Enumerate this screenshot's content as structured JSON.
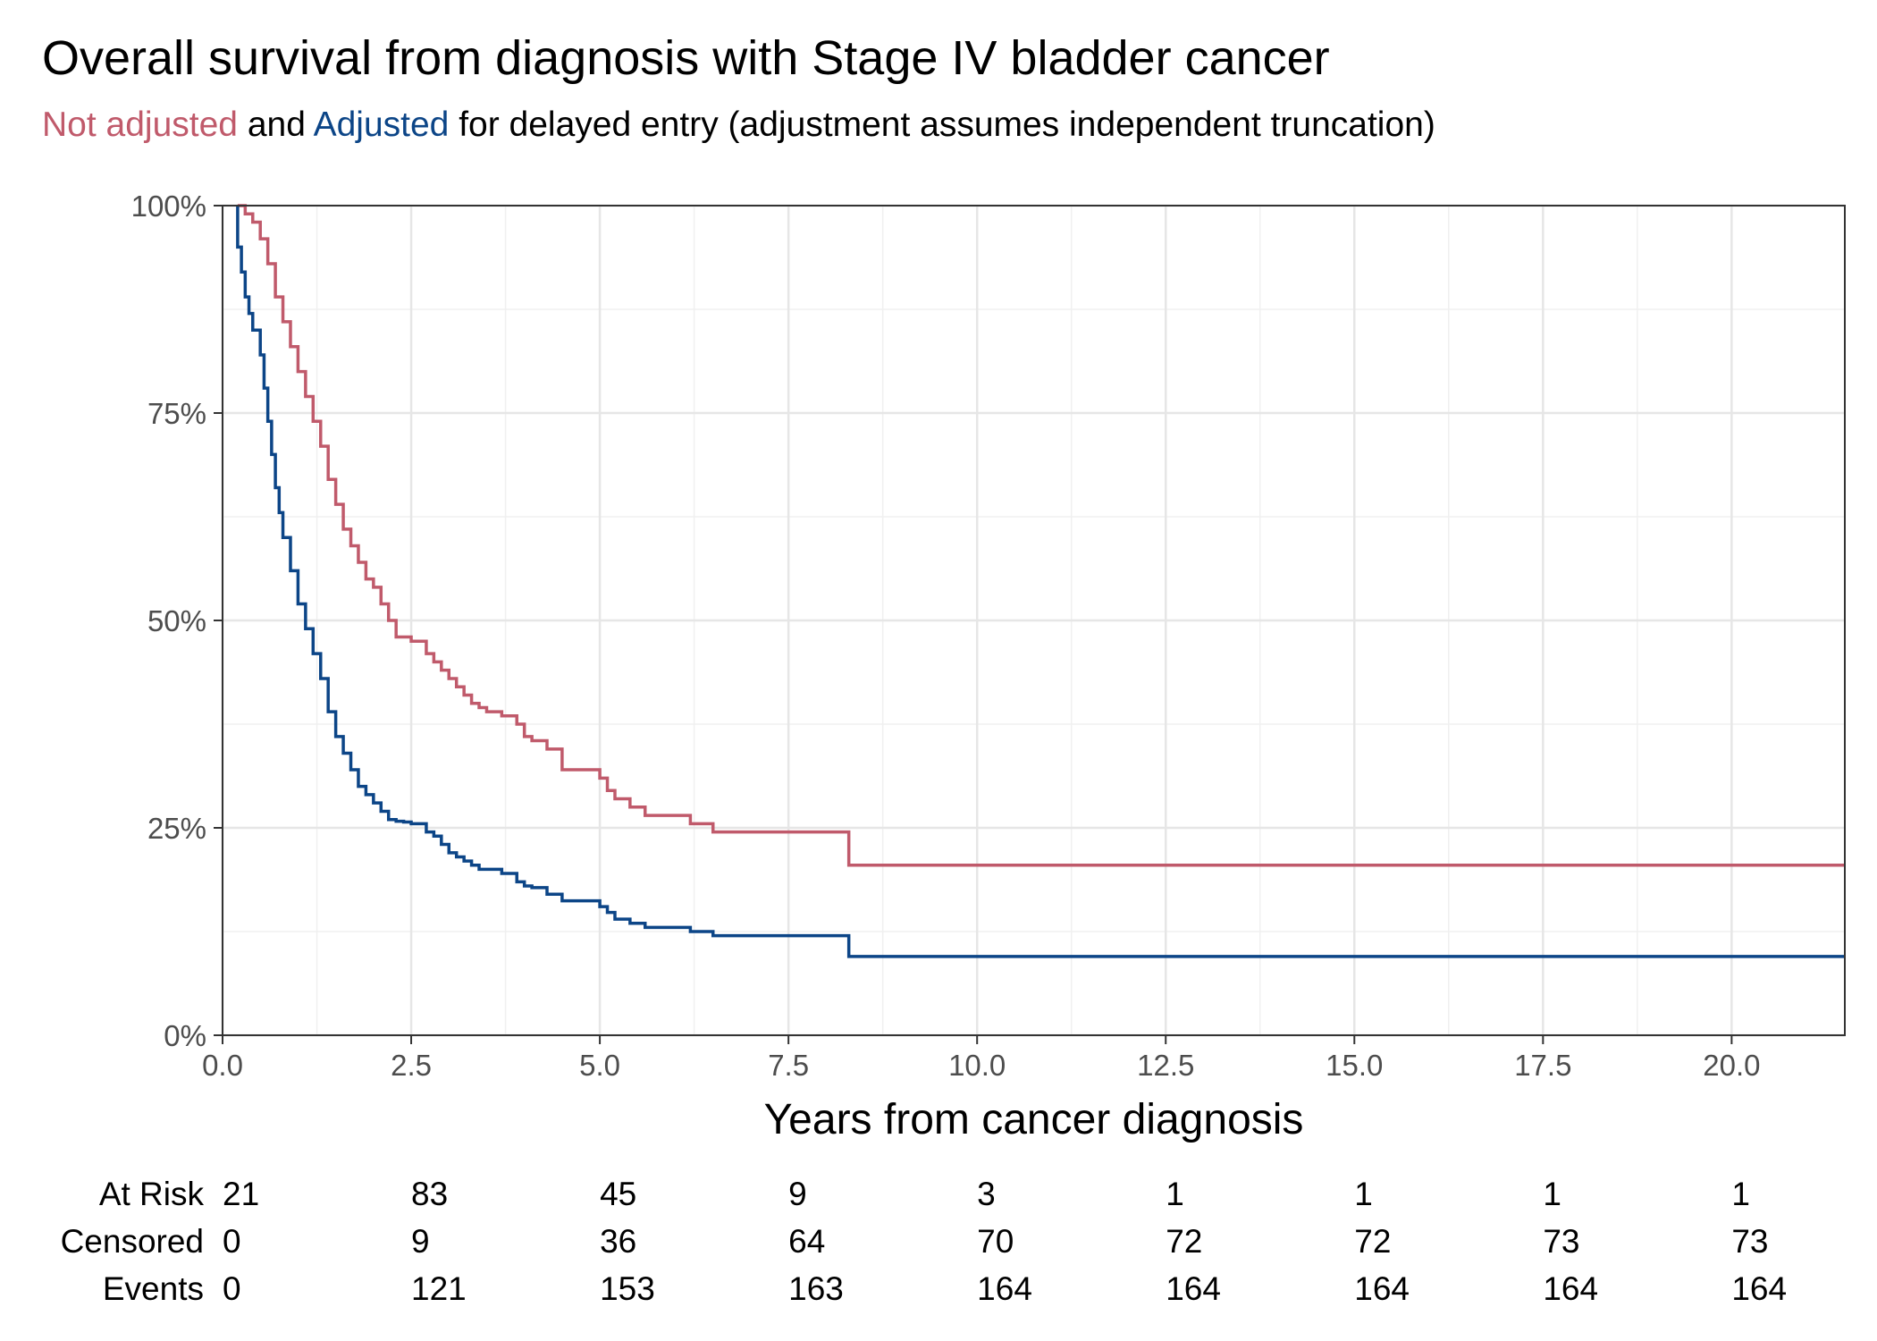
{
  "chart_data": {
    "type": "line",
    "title": "Overall survival from diagnosis with Stage IV bladder cancer",
    "subtitle": {
      "part1": "Not adjusted",
      "part2": " and ",
      "part3": "Adjusted",
      "part4": " for delayed entry (adjustment assumes independent truncation)"
    },
    "xlabel": "Years from cancer diagnosis",
    "ylabel": "",
    "xlim": [
      0,
      21.5
    ],
    "ylim": [
      0,
      1
    ],
    "x_ticks": [
      0,
      2.5,
      5,
      7.5,
      10,
      12.5,
      15,
      17.5,
      20
    ],
    "x_tick_labels": [
      "0.0",
      "2.5",
      "5.0",
      "7.5",
      "10.0",
      "12.5",
      "15.0",
      "17.5",
      "20.0"
    ],
    "y_ticks": [
      0,
      0.25,
      0.5,
      0.75,
      1
    ],
    "y_tick_labels": [
      "0%",
      "25%",
      "50%",
      "75%",
      "100%"
    ],
    "grid": true,
    "colors": {
      "not_adjusted": "#C05A6B",
      "adjusted": "#0C4587"
    },
    "series": [
      {
        "key": "not_adjusted",
        "x": [
          0.2,
          0.3,
          0.4,
          0.5,
          0.6,
          0.7,
          0.8,
          0.9,
          1.0,
          1.1,
          1.2,
          1.3,
          1.4,
          1.5,
          1.6,
          1.7,
          1.8,
          1.9,
          2.0,
          2.1,
          2.2,
          2.3,
          2.4,
          2.5,
          2.7,
          2.8,
          2.9,
          3.0,
          3.1,
          3.2,
          3.3,
          3.4,
          3.5,
          3.7,
          3.9,
          4.0,
          4.1,
          4.3,
          4.5,
          4.7,
          4.9,
          5.0,
          5.1,
          5.2,
          5.4,
          5.6,
          6.0,
          6.2,
          6.5,
          7.2,
          8.3,
          21.5
        ],
        "y": [
          1.0,
          0.99,
          0.98,
          0.96,
          0.93,
          0.89,
          0.86,
          0.83,
          0.8,
          0.77,
          0.74,
          0.71,
          0.67,
          0.64,
          0.61,
          0.59,
          0.57,
          0.55,
          0.54,
          0.52,
          0.5,
          0.48,
          0.48,
          0.475,
          0.46,
          0.45,
          0.44,
          0.43,
          0.42,
          0.41,
          0.4,
          0.395,
          0.39,
          0.385,
          0.375,
          0.36,
          0.355,
          0.345,
          0.32,
          0.32,
          0.32,
          0.31,
          0.295,
          0.285,
          0.275,
          0.265,
          0.265,
          0.255,
          0.245,
          0.245,
          0.205,
          0.205
        ]
      },
      {
        "key": "adjusted",
        "x": [
          0.2,
          0.25,
          0.3,
          0.35,
          0.4,
          0.5,
          0.55,
          0.6,
          0.65,
          0.7,
          0.75,
          0.8,
          0.9,
          1.0,
          1.1,
          1.2,
          1.3,
          1.4,
          1.5,
          1.6,
          1.7,
          1.8,
          1.9,
          2.0,
          2.1,
          2.2,
          2.3,
          2.4,
          2.5,
          2.7,
          2.8,
          2.9,
          3.0,
          3.1,
          3.2,
          3.3,
          3.4,
          3.5,
          3.7,
          3.9,
          4.0,
          4.1,
          4.3,
          4.5,
          4.7,
          4.9,
          5.0,
          5.1,
          5.2,
          5.4,
          5.6,
          6.0,
          6.2,
          6.5,
          7.2,
          8.3,
          21.5
        ],
        "y": [
          0.95,
          0.92,
          0.89,
          0.87,
          0.85,
          0.82,
          0.78,
          0.74,
          0.7,
          0.66,
          0.63,
          0.6,
          0.56,
          0.52,
          0.49,
          0.46,
          0.43,
          0.39,
          0.36,
          0.34,
          0.32,
          0.3,
          0.29,
          0.28,
          0.27,
          0.26,
          0.258,
          0.257,
          0.255,
          0.245,
          0.24,
          0.23,
          0.22,
          0.215,
          0.21,
          0.205,
          0.2,
          0.2,
          0.195,
          0.185,
          0.18,
          0.178,
          0.17,
          0.162,
          0.162,
          0.162,
          0.155,
          0.148,
          0.14,
          0.135,
          0.13,
          0.13,
          0.125,
          0.12,
          0.12,
          0.095,
          0.095
        ]
      }
    ],
    "risk_table": {
      "row_labels": [
        "At Risk",
        "Censored",
        "Events"
      ],
      "times": [
        0,
        2.5,
        5,
        7.5,
        10,
        12.5,
        15,
        17.5,
        20
      ],
      "rows": [
        [
          "21",
          "83",
          "45",
          "9",
          "3",
          "1",
          "1",
          "1",
          "1"
        ],
        [
          "0",
          "9",
          "36",
          "64",
          "70",
          "72",
          "72",
          "73",
          "73"
        ],
        [
          "0",
          "121",
          "153",
          "163",
          "164",
          "164",
          "164",
          "164",
          "164"
        ]
      ]
    }
  }
}
